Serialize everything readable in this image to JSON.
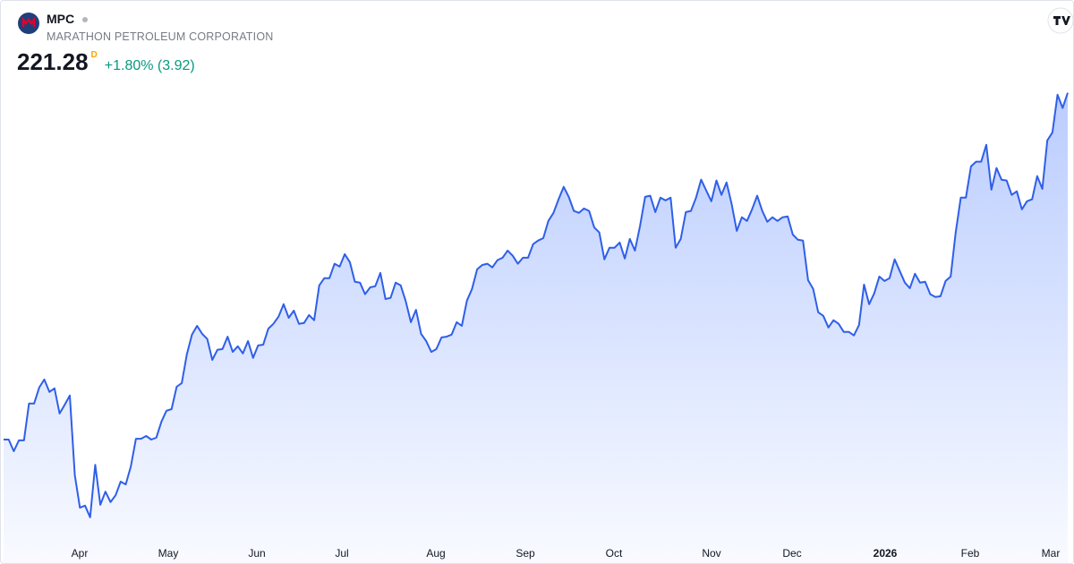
{
  "header": {
    "symbol": "MPC",
    "name": "MARATHON PETROLEUM CORPORATION",
    "price": "221.28",
    "price_suffix": "D",
    "change": "+1.80% (3.92)"
  },
  "chart_data": {
    "type": "area",
    "series": [
      {
        "color": "#2f5fe8",
        "values": [
          134.7,
          134.7,
          131.8,
          134.5,
          134.5,
          143.7,
          143.7,
          147.7,
          149.7,
          146.6,
          147.5,
          141.2,
          143.4,
          145.7,
          125.8,
          117.7,
          118.2,
          115.3,
          128.4,
          118.4,
          121.7,
          119.1,
          120.8,
          124.2,
          123.5,
          128.0,
          134.9,
          134.9,
          135.6,
          134.7,
          135.2,
          139.2,
          141.9,
          142.3,
          147.9,
          148.8,
          156.0,
          160.9,
          163.1,
          161.1,
          159.8,
          154.6,
          157.1,
          157.3,
          160.4,
          156.6,
          158.0,
          156.2,
          159.3,
          155.1,
          158.2,
          158.4,
          162.4,
          163.6,
          165.4,
          168.5,
          165.1,
          166.9,
          163.6,
          163.8,
          165.8,
          164.5,
          173.2,
          175.0,
          175.0,
          178.6,
          177.9,
          181.0,
          179.0,
          174.1,
          173.9,
          171.0,
          172.7,
          173.0,
          176.3,
          169.8,
          170.1,
          173.9,
          173.2,
          169.2,
          164.0,
          167.1,
          161.1,
          159.3,
          156.6,
          157.3,
          160.2,
          160.4,
          160.9,
          164.0,
          163.1,
          169.4,
          172.3,
          177.2,
          178.3,
          178.6,
          177.7,
          179.5,
          180.1,
          181.9,
          180.6,
          178.6,
          180.1,
          180.1,
          183.5,
          184.4,
          185.0,
          189.3,
          191.3,
          194.7,
          197.8,
          195.3,
          191.8,
          191.3,
          192.4,
          191.8,
          187.7,
          186.4,
          179.7,
          182.6,
          182.6,
          183.9,
          179.9,
          184.8,
          181.9,
          188.0,
          195.3,
          195.6,
          191.5,
          195.1,
          194.4,
          195.1,
          182.6,
          184.8,
          191.5,
          191.8,
          195.1,
          199.6,
          196.9,
          194.2,
          199.4,
          195.8,
          198.9,
          193.5,
          186.8,
          190.2,
          189.3,
          192.2,
          195.6,
          191.8,
          189.1,
          190.2,
          189.3,
          190.2,
          190.4,
          185.9,
          184.6,
          184.4,
          174.5,
          172.3,
          166.5,
          165.6,
          162.7,
          164.5,
          163.6,
          161.6,
          161.6,
          160.7,
          163.3,
          173.4,
          168.5,
          171.2,
          175.4,
          174.3,
          175.0,
          179.7,
          176.8,
          173.9,
          172.5,
          176.1,
          173.9,
          174.1,
          171.0,
          170.3,
          170.5,
          174.3,
          175.4,
          186.4,
          195.1,
          195.1,
          202.9,
          204.1,
          204.1,
          208.3,
          197.1,
          202.5,
          199.6,
          199.4,
          195.8,
          196.7,
          192.2,
          194.2,
          194.7,
          200.5,
          197.3,
          209.4,
          211.4,
          220.8,
          217.5,
          221.28
        ]
      }
    ],
    "ylim": [
      109,
      223
    ],
    "x_labels": [
      "Apr",
      "May",
      "Jun",
      "Jul",
      "Aug",
      "Sep",
      "Oct",
      "Nov",
      "Dec",
      "2026",
      "Feb",
      "Mar"
    ]
  }
}
